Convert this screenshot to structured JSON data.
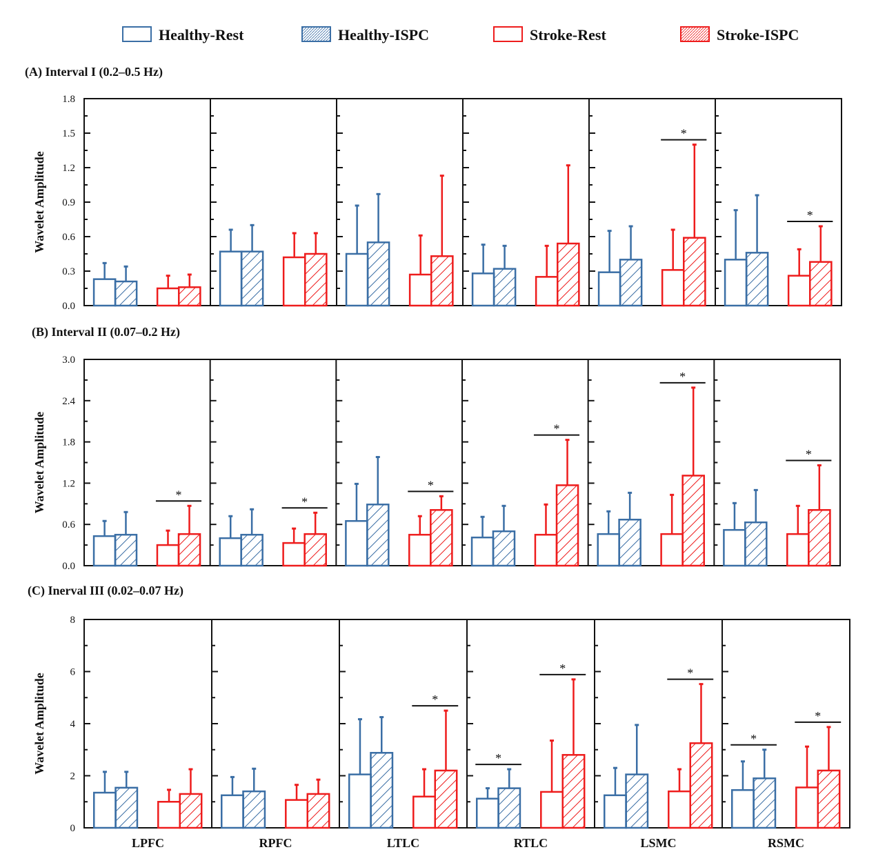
{
  "legend": [
    {
      "label": "Healthy-Rest",
      "color": "#3a6ea5",
      "hatched": false
    },
    {
      "label": "Healthy-ISPC",
      "color": "#3a6ea5",
      "hatched": true
    },
    {
      "label": "Stroke-Rest",
      "color": "#ee1c1c",
      "hatched": false
    },
    {
      "label": "Stroke-ISPC",
      "color": "#ee1c1c",
      "hatched": true
    }
  ],
  "x_labels": [
    "LPFC",
    "RPFC",
    "LTLC",
    "RTLC",
    "LSMC",
    "RSMC"
  ],
  "significance_marker": "*",
  "chart_data": [
    {
      "type": "bar",
      "title": "(A) Interval I (0.2–0.5 Hz)",
      "ylabel": "Wavelet Amplitude",
      "ylim": [
        0,
        1.8
      ],
      "yticks": [
        "0.0",
        "0.3",
        "0.6",
        "0.9",
        "1.2",
        "1.5",
        "1.8"
      ],
      "major_step": 0.3,
      "categories": [
        "LPFC",
        "RPFC",
        "LTLC",
        "RTLC",
        "LSMC",
        "RSMC"
      ],
      "series": [
        {
          "name": "Healthy-Rest",
          "values": [
            0.23,
            0.47,
            0.45,
            0.28,
            0.29,
            0.4
          ],
          "error_top": [
            0.37,
            0.66,
            0.87,
            0.53,
            0.65,
            0.83
          ]
        },
        {
          "name": "Healthy-ISPC",
          "values": [
            0.21,
            0.47,
            0.55,
            0.32,
            0.4,
            0.46
          ],
          "error_top": [
            0.34,
            0.7,
            0.97,
            0.52,
            0.69,
            0.96
          ]
        },
        {
          "name": "Stroke-Rest",
          "values": [
            0.15,
            0.42,
            0.27,
            0.25,
            0.31,
            0.26
          ],
          "error_top": [
            0.26,
            0.63,
            0.61,
            0.52,
            0.66,
            0.49
          ]
        },
        {
          "name": "Stroke-ISPC",
          "values": [
            0.16,
            0.45,
            0.43,
            0.54,
            0.59,
            0.38
          ],
          "error_top": [
            0.27,
            0.63,
            1.13,
            1.22,
            1.4,
            0.69
          ]
        }
      ],
      "significant": [
        {
          "category": "LSMC",
          "group": "Stroke"
        },
        {
          "category": "RSMC",
          "group": "Stroke"
        }
      ]
    },
    {
      "type": "bar",
      "title": "(B) Interval II (0.07–0.2 Hz)",
      "ylabel": "Wavelet Amplitude",
      "ylim": [
        0,
        3.0
      ],
      "yticks": [
        "0.0",
        "0.6",
        "1.2",
        "1.8",
        "2.4",
        "3.0"
      ],
      "major_step": 0.6,
      "categories": [
        "LPFC",
        "RPFC",
        "LTLC",
        "RTLC",
        "LSMC",
        "RSMC"
      ],
      "series": [
        {
          "name": "Healthy-Rest",
          "values": [
            0.43,
            0.4,
            0.65,
            0.41,
            0.46,
            0.52
          ],
          "error_top": [
            0.65,
            0.72,
            1.19,
            0.71,
            0.79,
            0.91
          ]
        },
        {
          "name": "Healthy-ISPC",
          "values": [
            0.45,
            0.45,
            0.89,
            0.5,
            0.67,
            0.63
          ],
          "error_top": [
            0.78,
            0.82,
            1.58,
            0.87,
            1.06,
            1.1
          ]
        },
        {
          "name": "Stroke-Rest",
          "values": [
            0.3,
            0.33,
            0.45,
            0.45,
            0.46,
            0.46
          ],
          "error_top": [
            0.51,
            0.54,
            0.72,
            0.89,
            1.03,
            0.87
          ]
        },
        {
          "name": "Stroke-ISPC",
          "values": [
            0.46,
            0.46,
            0.81,
            1.17,
            1.31,
            0.81
          ],
          "error_top": [
            0.87,
            0.77,
            1.01,
            1.83,
            2.59,
            1.46
          ]
        }
      ],
      "significant": [
        {
          "category": "LPFC",
          "group": "Stroke"
        },
        {
          "category": "RPFC",
          "group": "Stroke"
        },
        {
          "category": "LTLC",
          "group": "Stroke"
        },
        {
          "category": "RTLC",
          "group": "Stroke"
        },
        {
          "category": "LSMC",
          "group": "Stroke"
        },
        {
          "category": "RSMC",
          "group": "Stroke"
        }
      ]
    },
    {
      "type": "bar",
      "title": "(C) Inerval III (0.02–0.07 Hz)",
      "ylabel": "Wavelet Amplitude",
      "ylim": [
        0,
        8
      ],
      "yticks": [
        "0",
        "2",
        "4",
        "6",
        "8"
      ],
      "major_step": 2,
      "categories": [
        "LPFC",
        "RPFC",
        "LTLC",
        "RTLC",
        "LSMC",
        "RSMC"
      ],
      "series": [
        {
          "name": "Healthy-Rest",
          "values": [
            1.35,
            1.25,
            2.05,
            1.12,
            1.25,
            1.45
          ],
          "error_top": [
            2.15,
            1.95,
            4.17,
            1.52,
            2.3,
            2.55
          ]
        },
        {
          "name": "Healthy-ISPC",
          "values": [
            1.54,
            1.4,
            2.88,
            1.52,
            2.05,
            1.9
          ],
          "error_top": [
            2.15,
            2.27,
            4.25,
            2.25,
            3.95,
            3.0
          ]
        },
        {
          "name": "Stroke-Rest",
          "values": [
            1.0,
            1.07,
            1.2,
            1.38,
            1.4,
            1.55
          ],
          "error_top": [
            1.46,
            1.65,
            2.25,
            3.35,
            2.25,
            3.12
          ]
        },
        {
          "name": "Stroke-ISPC",
          "values": [
            1.3,
            1.3,
            2.2,
            2.8,
            3.25,
            2.2
          ],
          "error_top": [
            2.25,
            1.85,
            4.5,
            5.7,
            5.52,
            3.87
          ]
        }
      ],
      "significant": [
        {
          "category": "LTLC",
          "group": "Stroke"
        },
        {
          "category": "RTLC",
          "group": "Healthy"
        },
        {
          "category": "RTLC",
          "group": "Stroke"
        },
        {
          "category": "LSMC",
          "group": "Stroke"
        },
        {
          "category": "RSMC",
          "group": "Healthy"
        },
        {
          "category": "RSMC",
          "group": "Stroke"
        }
      ]
    }
  ]
}
